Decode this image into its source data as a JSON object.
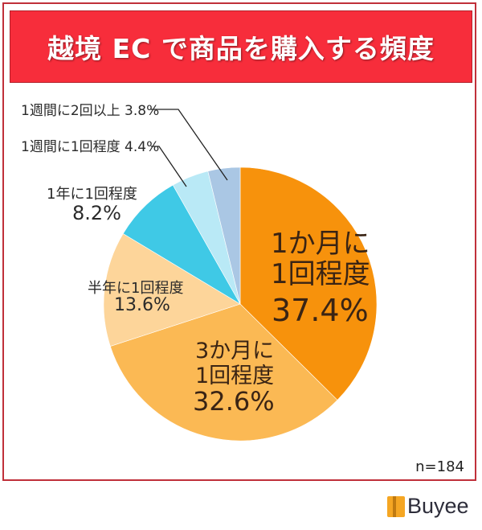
{
  "title": "越境 EC で商品を購入する頻度",
  "sample_size": "n=184",
  "brand": "Buyee",
  "chart_data": {
    "type": "pie",
    "title": "越境 EC で商品を購入する頻度",
    "start_angle": "12 o'clock, clockwise",
    "categories": [
      "1か月に1回程度",
      "3か月に1回程度",
      "半年に1回程度",
      "1年に1回程度",
      "1週間に1回程度",
      "1週間に2回以上"
    ],
    "values": [
      37.4,
      32.6,
      13.6,
      8.2,
      4.4,
      3.8
    ],
    "colors": [
      "#f7920c",
      "#fbb954",
      "#fdd59a",
      "#3fc9e6",
      "#b9e9f6",
      "#aac7e4"
    ],
    "n": 184,
    "annotations": [
      "n=184"
    ]
  },
  "labels": {
    "monthly_line1": "1か月に",
    "monthly_line2": "1回程度",
    "monthly_pct": "37.4%",
    "quarterly_line1": "3か月に",
    "quarterly_line2": "1回程度",
    "quarterly_pct": "32.6%",
    "halfyear_line1": "半年に1回程度",
    "halfyear_pct": "13.6%",
    "yearly_line1": "1年に1回程度",
    "yearly_pct": "8.2%",
    "weekly_once": "1週間に1回程度 4.4%",
    "weekly_twice": "1週間に2回以上 3.8%"
  }
}
